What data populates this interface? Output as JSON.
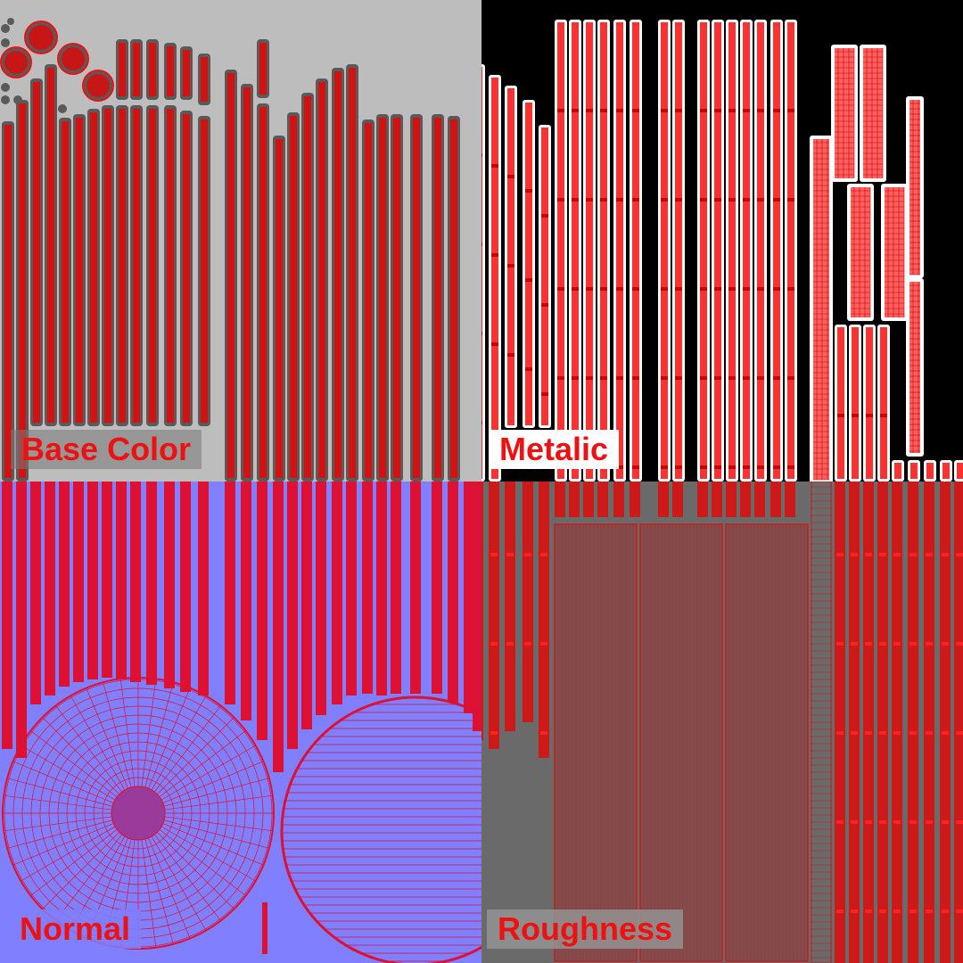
{
  "labels": {
    "base_color": "Base Color",
    "metalic": "Metalic",
    "normal": "Normal",
    "roughness": "Roughness"
  },
  "colors": {
    "wire_red": "#ee1111",
    "base_bg": "#bdbdbd",
    "base_shell": "#5a5a5a",
    "metal_bg": "#000000",
    "metal_shell": "#ffffff",
    "normal_bg": "#8080ff",
    "rough_bg": "#6a6a6a"
  }
}
